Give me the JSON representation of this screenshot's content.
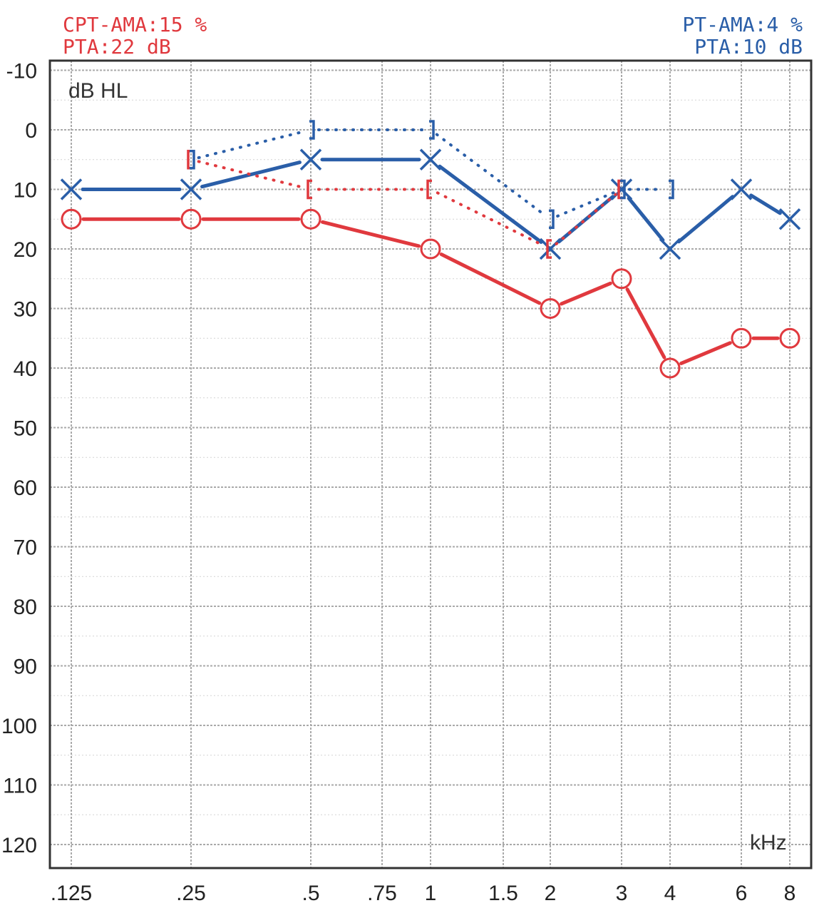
{
  "colors": {
    "right": "#e0393e",
    "left": "#2a5ea8",
    "grid": "#aaaaaa",
    "frame": "#333333"
  },
  "stats": {
    "right_cpt_ama": "CPT-AMA:15 %",
    "right_pta": "PTA:22 dB",
    "left_pt_ama": "PT-AMA:4 %",
    "left_pta": "PTA:10 dB"
  },
  "chart_data": {
    "type": "line",
    "title": "",
    "ylabel": "dB HL",
    "xlabel": "kHz",
    "y_inverted": true,
    "ylim": [
      -10,
      120
    ],
    "y_ticks": [
      "-10",
      "0",
      "10",
      "20",
      "30",
      "40",
      "50",
      "60",
      "70",
      "80",
      "90",
      "100",
      "110",
      "120"
    ],
    "x_ticks": [
      ".125",
      ".25",
      ".5",
      ".75",
      "1",
      "1.5",
      "2",
      "3",
      "4",
      "6",
      "8"
    ],
    "x_values_khz": [
      0.125,
      0.25,
      0.5,
      0.75,
      1,
      1.5,
      2,
      3,
      4,
      6,
      8
    ],
    "grid": true,
    "series": [
      {
        "ear": "right",
        "conduction": "air",
        "symbol": "circle",
        "line": "solid",
        "color": "#e0393e",
        "x": [
          0.125,
          0.25,
          0.5,
          1,
          2,
          3,
          4,
          6,
          8
        ],
        "values": [
          15,
          15,
          15,
          20,
          30,
          25,
          40,
          35,
          35
        ]
      },
      {
        "ear": "left",
        "conduction": "air",
        "symbol": "x",
        "line": "solid",
        "color": "#2a5ea8",
        "x": [
          0.125,
          0.25,
          0.5,
          1,
          2,
          3,
          4,
          6,
          8
        ],
        "values": [
          10,
          10,
          5,
          5,
          20,
          10,
          20,
          10,
          15
        ]
      },
      {
        "ear": "right",
        "conduction": "bone-masked",
        "symbol": "bracket-open",
        "line": "dotted",
        "color": "#e0393e",
        "x": [
          0.25,
          0.5,
          1,
          2,
          3
        ],
        "values": [
          5,
          10,
          10,
          20,
          10
        ]
      },
      {
        "ear": "left",
        "conduction": "bone-masked",
        "symbol": "bracket-close",
        "line": "dotted",
        "color": "#2a5ea8",
        "x": [
          0.25,
          0.5,
          1,
          2,
          3,
          4
        ],
        "values": [
          5,
          0,
          0,
          15,
          10,
          10
        ]
      }
    ]
  }
}
